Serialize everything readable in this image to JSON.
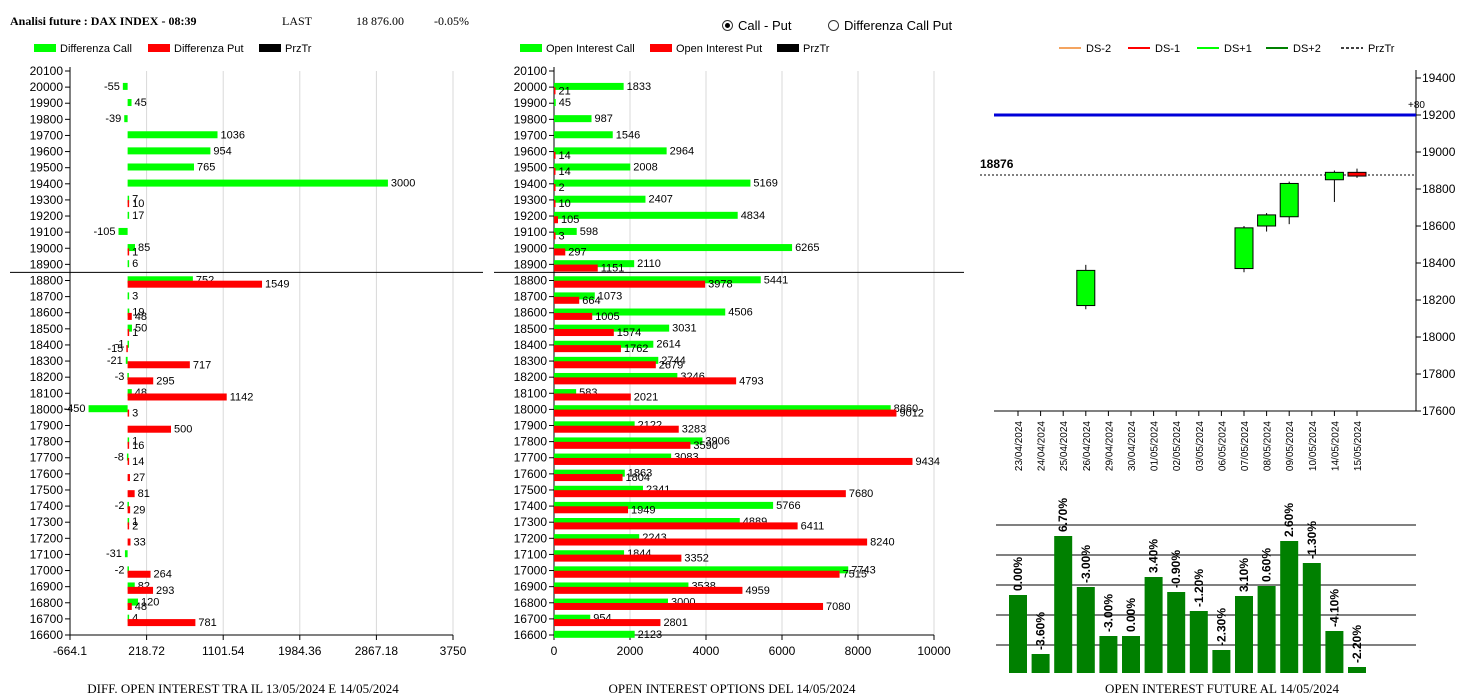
{
  "header": {
    "title": "Analisi future : DAX INDEX - 08:39",
    "last_label": "LAST",
    "last_value": "18 876.00",
    "change": "-0.05%"
  },
  "radio": {
    "options": [
      "Call - Put",
      "Differenza Call Put"
    ],
    "selected": 0
  },
  "colors": {
    "green": "#00ff00",
    "red": "#ff0000",
    "blue": "#0000d8",
    "dark_green": "#008000",
    "orange": "#f4a460",
    "light_green": "#32cd32"
  },
  "chart_data": [
    {
      "type": "bar",
      "orientation": "horizontal",
      "title": "DIFF. OPEN INTEREST TRA IL 13/05/2024 E 14/05/2024",
      "legend": [
        "Differenza Call",
        "Differenza Put",
        "PrzTr"
      ],
      "categories": [
        "20100",
        "20000",
        "19900",
        "19800",
        "19700",
        "19600",
        "19500",
        "19400",
        "19300",
        "19200",
        "19100",
        "19000",
        "18900",
        "18800",
        "18700",
        "18600",
        "18500",
        "18400",
        "18300",
        "18200",
        "18100",
        "18000",
        "17900",
        "17800",
        "17700",
        "17600",
        "17500",
        "17400",
        "17300",
        "17200",
        "17100",
        "17000",
        "16900",
        "16800",
        "16700",
        "16600"
      ],
      "series": [
        {
          "name": "Differenza Call",
          "values": [
            null,
            -55,
            45,
            -39,
            1036,
            954,
            765,
            3000,
            7,
            17,
            -105,
            85,
            6,
            752,
            3,
            19,
            50,
            -1,
            -21,
            -3,
            48,
            -450,
            null,
            1,
            -8,
            null,
            null,
            -2,
            1,
            null,
            -31,
            -2,
            82,
            120,
            4,
            null
          ]
        },
        {
          "name": "Differenza Put",
          "values": [
            null,
            null,
            null,
            null,
            null,
            null,
            null,
            null,
            10,
            null,
            null,
            1,
            null,
            1549,
            null,
            48,
            1,
            -15,
            717,
            295,
            1142,
            3,
            500,
            16,
            14,
            27,
            81,
            29,
            2,
            33,
            null,
            264,
            293,
            48,
            781,
            null
          ]
        }
      ],
      "prztr": "18876",
      "xlim": [
        -664.1,
        3750
      ],
      "xticks": [
        "-664.1",
        "218.72",
        "1101.54",
        "1984.36",
        "2867.18",
        "3750"
      ]
    },
    {
      "type": "bar",
      "orientation": "horizontal",
      "title": "OPEN INTEREST OPTIONS DEL 14/05/2024",
      "legend": [
        "Open Interest Call",
        "Open Interest Put",
        "PrzTr"
      ],
      "categories": [
        "20100",
        "20000",
        "19900",
        "19800",
        "19700",
        "19600",
        "19500",
        "19400",
        "19300",
        "19200",
        "19100",
        "19000",
        "18900",
        "18800",
        "18700",
        "18600",
        "18500",
        "18400",
        "18300",
        "18200",
        "18100",
        "18000",
        "17900",
        "17800",
        "17700",
        "17600",
        "17500",
        "17400",
        "17300",
        "17200",
        "17100",
        "17000",
        "16900",
        "16800",
        "16700",
        "16600"
      ],
      "series": [
        {
          "name": "Open Interest Call",
          "values": [
            null,
            1833,
            45,
            987,
            1546,
            2964,
            2008,
            5169,
            2407,
            4834,
            598,
            6265,
            2110,
            5441,
            1073,
            4506,
            3031,
            2614,
            2744,
            3246,
            583,
            8860,
            2122,
            3906,
            3083,
            1863,
            2341,
            5766,
            4889,
            2243,
            1844,
            7743,
            3538,
            3000,
            954,
            2123
          ]
        },
        {
          "name": "Open Interest Put",
          "values": [
            null,
            21,
            null,
            null,
            null,
            14,
            14,
            2,
            10,
            105,
            3,
            297,
            1151,
            3978,
            664,
            1005,
            1574,
            1762,
            2679,
            4793,
            2021,
            9012,
            3283,
            3590,
            9434,
            1804,
            7680,
            1949,
            6411,
            8240,
            3352,
            7515,
            4959,
            7080,
            2801,
            null
          ]
        }
      ],
      "prztr": "18876",
      "xlim": [
        0,
        10000
      ],
      "xticks": [
        "0",
        "2000",
        "4000",
        "6000",
        "8000",
        "10000"
      ]
    },
    {
      "type": "candlestick",
      "legend": [
        "DS-2",
        "DS-1",
        "DS+1",
        "DS+2",
        "PrzTr"
      ],
      "categories": [
        "23/04/2024",
        "24/04/2024",
        "25/04/2024",
        "26/04/2024",
        "29/04/2024",
        "30/04/2024",
        "01/05/2024",
        "02/05/2024",
        "03/05/2024",
        "06/05/2024",
        "07/05/2024",
        "08/05/2024",
        "09/05/2024",
        "10/05/2024",
        "14/05/2024",
        "15/05/2024"
      ],
      "candles": [
        {
          "date": "26/04/2024",
          "open": 18170,
          "close": 18360,
          "high": 18390,
          "low": 18150,
          "color": "green"
        },
        {
          "date": "07/05/2024",
          "open": 18370,
          "close": 18590,
          "high": 18600,
          "low": 18350,
          "color": "green"
        },
        {
          "date": "08/05/2024",
          "open": 18600,
          "close": 18660,
          "high": 18670,
          "low": 18570,
          "color": "green"
        },
        {
          "date": "09/05/2024",
          "open": 18650,
          "close": 18830,
          "high": 18840,
          "low": 18610,
          "color": "green"
        },
        {
          "date": "14/05/2024",
          "open": 18850,
          "close": 18890,
          "high": 18900,
          "low": 18730,
          "color": "green"
        },
        {
          "date": "15/05/2024",
          "open": 18890,
          "close": 18870,
          "high": 18910,
          "low": 18860,
          "color": "red"
        }
      ],
      "blue_line": 19200,
      "blue_label": "+80",
      "prztr_value": 18876,
      "prztr_label": "18876",
      "ylim": [
        17600,
        19400
      ],
      "yticks": [
        "17600",
        "17800",
        "18000",
        "18200",
        "18400",
        "18600",
        "18800",
        "19000",
        "19200",
        "19400"
      ]
    },
    {
      "type": "bar",
      "title": "OPEN INTEREST FUTURE AL 14/05/2024",
      "labels": [
        "0.00%",
        "-3.60%",
        "6.70%",
        "-3.00%",
        "-3.00%",
        "0.00%",
        "3.40%",
        "-0.90%",
        "-1.20%",
        "-2.30%",
        "3.10%",
        "0.60%",
        "2.60%",
        "-1.30%",
        "-4.10%",
        "-2.20%"
      ],
      "values": [
        78,
        19,
        137,
        86,
        37,
        37,
        96,
        81,
        62,
        23,
        77,
        87,
        132,
        110,
        42,
        6
      ]
    }
  ]
}
